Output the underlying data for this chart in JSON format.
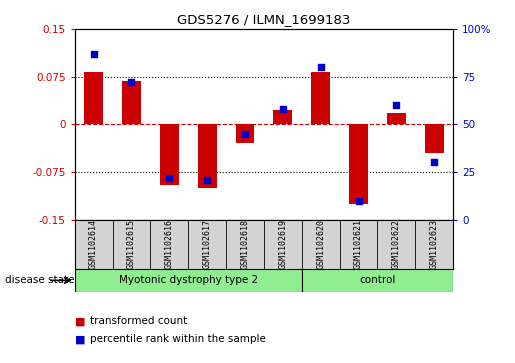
{
  "title": "GDS5276 / ILMN_1699183",
  "samples": [
    "GSM1102614",
    "GSM1102615",
    "GSM1102616",
    "GSM1102617",
    "GSM1102618",
    "GSM1102619",
    "GSM1102620",
    "GSM1102621",
    "GSM1102622",
    "GSM1102623"
  ],
  "red_values": [
    0.082,
    0.068,
    -0.095,
    -0.1,
    -0.03,
    0.022,
    0.083,
    -0.125,
    0.018,
    -0.045
  ],
  "blue_values": [
    87,
    72,
    22,
    21,
    45,
    58,
    80,
    10,
    60,
    30
  ],
  "group1_label": "Myotonic dystrophy type 2",
  "group1_count": 6,
  "group2_label": "control",
  "group2_count": 4,
  "group_color": "#90EE90",
  "ylim_left": [
    -0.15,
    0.15
  ],
  "ylim_right": [
    0,
    100
  ],
  "yticks_left": [
    -0.15,
    -0.075,
    0,
    0.075,
    0.15
  ],
  "yticks_right": [
    0,
    25,
    50,
    75,
    100
  ],
  "red_color": "#CC0000",
  "blue_color": "#0000CC",
  "dotted_lines": [
    -0.075,
    0.075
  ],
  "bar_width": 0.5,
  "disease_state_label": "disease state",
  "legend_red": "transformed count",
  "legend_blue": "percentile rank within the sample",
  "sample_bg_color": "#D3D3D3",
  "plot_bg_color": "#FFFFFF"
}
